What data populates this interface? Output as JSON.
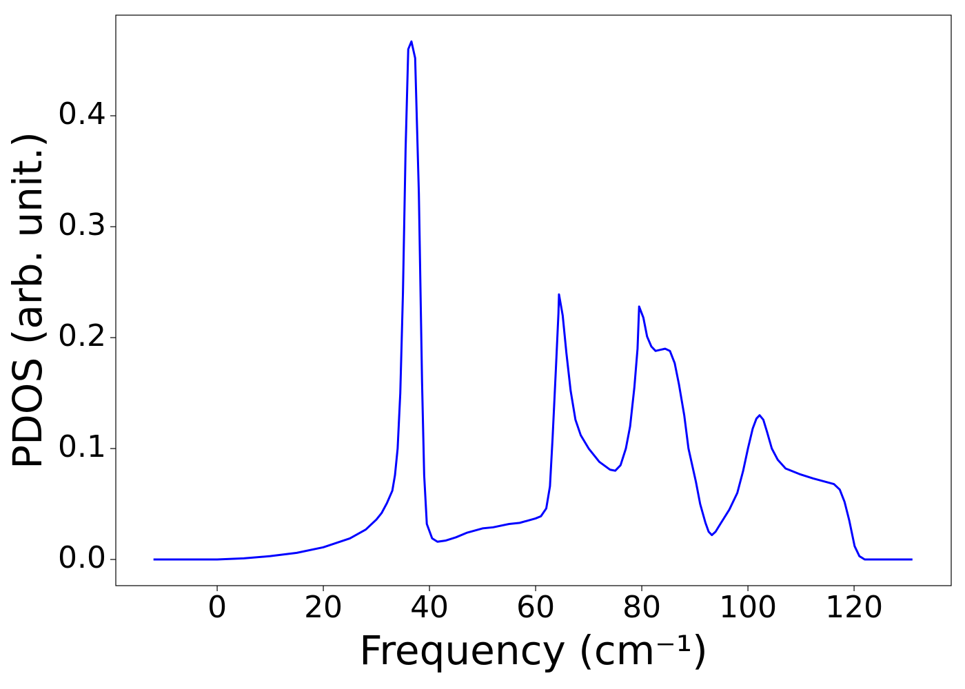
{
  "chart_data": {
    "type": "line",
    "xlabel": "Frequency (cm⁻¹)",
    "ylabel": "PDOS (arb. unit.)",
    "xlim": [
      -19.1,
      138.3
    ],
    "ylim": [
      -0.0236,
      0.4907
    ],
    "xticks": [
      0,
      20,
      40,
      60,
      80,
      100,
      120
    ],
    "yticks": [
      {
        "value": 0,
        "label": "0.0"
      },
      {
        "value": 0.1,
        "label": "0.1"
      },
      {
        "value": 0.2,
        "label": "0.2"
      },
      {
        "value": 0.3,
        "label": "0.3"
      },
      {
        "value": 0.4,
        "label": "0.4"
      }
    ],
    "grid": false,
    "series": [
      {
        "color": "#0000ff",
        "x": [
          -12,
          0,
          5,
          10,
          15,
          20,
          25,
          28,
          30,
          31,
          32,
          33,
          33.5,
          34,
          34.5,
          35,
          35.5,
          36,
          36.6,
          37.3,
          38,
          38.6,
          39,
          39.5,
          40.5,
          41.5,
          43,
          45,
          47,
          50,
          52,
          55,
          57,
          60,
          61,
          62,
          62.7,
          63.2,
          63.8,
          64.3,
          64.4,
          65.1,
          65.8,
          66.6,
          67.5,
          68.5,
          70,
          72,
          74,
          75,
          76,
          77,
          77.8,
          78.6,
          79.2,
          79.5,
          80.3,
          81,
          81.8,
          82.6,
          83.5,
          84.4,
          85.3,
          86.2,
          87,
          88,
          88.8,
          90.2,
          91,
          92,
          92.6,
          93.2,
          93.9,
          94.8,
          96.5,
          98,
          99.1,
          100,
          100.9,
          101.6,
          102.2,
          102.9,
          103.6,
          104.5,
          105.6,
          107.1,
          109.7,
          112.3,
          116.2,
          117.3,
          118.2,
          119.1,
          120.1,
          121,
          122,
          131
        ],
        "values": [
          0,
          0,
          0.001,
          0.003,
          0.006,
          0.011,
          0.019,
          0.027,
          0.036,
          0.042,
          0.051,
          0.062,
          0.076,
          0.1,
          0.15,
          0.24,
          0.37,
          0.46,
          0.467,
          0.452,
          0.33,
          0.16,
          0.076,
          0.032,
          0.019,
          0.016,
          0.017,
          0.02,
          0.024,
          0.028,
          0.029,
          0.032,
          0.033,
          0.037,
          0.039,
          0.046,
          0.066,
          0.11,
          0.17,
          0.222,
          0.239,
          0.22,
          0.186,
          0.152,
          0.126,
          0.112,
          0.1,
          0.088,
          0.081,
          0.08,
          0.085,
          0.1,
          0.12,
          0.155,
          0.19,
          0.228,
          0.218,
          0.201,
          0.192,
          0.188,
          0.189,
          0.19,
          0.188,
          0.177,
          0.158,
          0.13,
          0.1,
          0.07,
          0.05,
          0.033,
          0.025,
          0.022,
          0.025,
          0.032,
          0.045,
          0.06,
          0.08,
          0.1,
          0.118,
          0.127,
          0.13,
          0.126,
          0.115,
          0.1,
          0.09,
          0.082,
          0.077,
          0.073,
          0.068,
          0.063,
          0.052,
          0.035,
          0.012,
          0.003,
          0,
          0
        ]
      }
    ]
  }
}
